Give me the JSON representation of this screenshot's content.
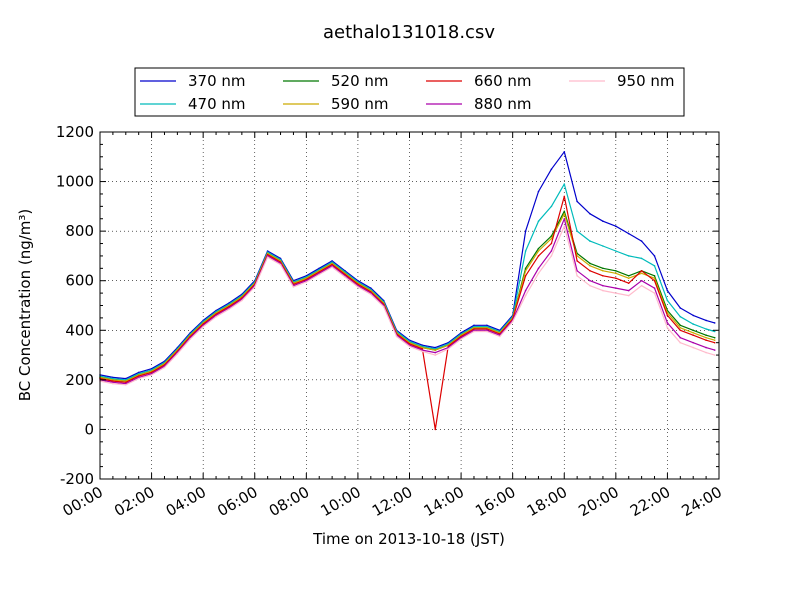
{
  "chart_data": {
    "type": "line",
    "title": "aethalo131018.csv",
    "xlabel": "Time on 2013-10-18 (JST)",
    "ylabel": "BC Concentration (ng/m³)",
    "ylim": [
      -200,
      1200
    ],
    "xlim": [
      "00:00",
      "24:00"
    ],
    "x_tick_labels": [
      "00:00",
      "02:00",
      "04:00",
      "06:00",
      "08:00",
      "10:00",
      "12:00",
      "14:00",
      "16:00",
      "18:00",
      "20:00",
      "22:00",
      "24:00"
    ],
    "y_tick_labels": [
      "-200",
      "0",
      "200",
      "400",
      "600",
      "800",
      "1000",
      "1200"
    ],
    "grid": true,
    "legend_position": "top-center",
    "x": [
      "00:00",
      "00:30",
      "01:00",
      "01:30",
      "02:00",
      "02:30",
      "03:00",
      "03:30",
      "04:00",
      "04:30",
      "05:00",
      "05:30",
      "06:00",
      "06:30",
      "07:00",
      "07:30",
      "08:00",
      "08:30",
      "09:00",
      "09:30",
      "10:00",
      "10:30",
      "11:00",
      "11:30",
      "12:00",
      "12:30",
      "13:00",
      "13:30",
      "14:00",
      "14:30",
      "15:00",
      "15:30",
      "16:00",
      "16:30",
      "17:00",
      "17:30",
      "18:00",
      "18:30",
      "19:00",
      "19:30",
      "20:00",
      "20:30",
      "21:00",
      "21:30",
      "22:00",
      "22:30",
      "23:00",
      "23:30",
      "23:50"
    ],
    "series": [
      {
        "name": "370 nm",
        "color": "#0000cc",
        "values": [
          220,
          210,
          205,
          230,
          245,
          275,
          330,
          390,
          440,
          480,
          510,
          545,
          600,
          720,
          690,
          600,
          620,
          650,
          680,
          640,
          600,
          570,
          520,
          400,
          360,
          340,
          330,
          350,
          390,
          420,
          420,
          400,
          460,
          800,
          960,
          1050,
          1120,
          920,
          870,
          840,
          820,
          790,
          760,
          700,
          560,
          490,
          460,
          440,
          430
        ]
      },
      {
        "name": "470 nm",
        "color": "#00bbbb",
        "values": [
          215,
          205,
          200,
          225,
          240,
          270,
          325,
          385,
          435,
          475,
          505,
          540,
          595,
          715,
          685,
          595,
          615,
          645,
          675,
          635,
          595,
          565,
          515,
          395,
          355,
          335,
          325,
          345,
          385,
          415,
          415,
          395,
          455,
          720,
          840,
          900,
          990,
          800,
          760,
          740,
          720,
          700,
          690,
          660,
          520,
          455,
          425,
          405,
          395
        ]
      },
      {
        "name": "520 nm",
        "color": "#007700",
        "values": [
          210,
          200,
          195,
          220,
          235,
          265,
          320,
          380,
          430,
          470,
          500,
          535,
          590,
          710,
          680,
          590,
          610,
          640,
          670,
          630,
          590,
          560,
          510,
          390,
          350,
          330,
          320,
          340,
          380,
          410,
          410,
          390,
          450,
          650,
          730,
          780,
          880,
          710,
          670,
          650,
          640,
          620,
          640,
          620,
          480,
          420,
          400,
          380,
          370
        ]
      },
      {
        "name": "590 nm",
        "color": "#ccaa00",
        "values": [
          210,
          200,
          195,
          220,
          235,
          265,
          320,
          380,
          430,
          470,
          500,
          535,
          590,
          710,
          680,
          590,
          610,
          640,
          670,
          630,
          590,
          560,
          510,
          390,
          350,
          330,
          320,
          340,
          380,
          410,
          410,
          390,
          450,
          640,
          720,
          770,
          870,
          700,
          660,
          640,
          630,
          610,
          630,
          610,
          470,
          410,
          390,
          370,
          360
        ]
      },
      {
        "name": "660 nm",
        "color": "#dd0000",
        "values": [
          205,
          195,
          190,
          215,
          230,
          260,
          315,
          375,
          425,
          465,
          495,
          530,
          585,
          705,
          675,
          585,
          605,
          635,
          665,
          625,
          585,
          555,
          505,
          385,
          345,
          325,
          0,
          335,
          375,
          405,
          405,
          385,
          445,
          620,
          700,
          750,
          940,
          680,
          640,
          620,
          610,
          590,
          640,
          600,
          460,
          400,
          380,
          360,
          350
        ]
      },
      {
        "name": "880 nm",
        "color": "#aa00aa",
        "values": [
          200,
          190,
          185,
          210,
          225,
          255,
          310,
          370,
          420,
          460,
          490,
          525,
          580,
          700,
          670,
          580,
          600,
          630,
          660,
          620,
          580,
          550,
          500,
          380,
          340,
          320,
          310,
          330,
          370,
          400,
          400,
          380,
          440,
          560,
          650,
          720,
          850,
          640,
          600,
          580,
          570,
          560,
          600,
          570,
          430,
          370,
          350,
          330,
          320
        ]
      },
      {
        "name": "950 nm",
        "color": "#ffbbcc",
        "values": [
          195,
          185,
          180,
          205,
          220,
          250,
          305,
          365,
          415,
          455,
          485,
          520,
          575,
          695,
          665,
          575,
          595,
          625,
          655,
          615,
          575,
          545,
          495,
          375,
          335,
          315,
          300,
          325,
          365,
          395,
          395,
          375,
          435,
          540,
          630,
          700,
          820,
          620,
          580,
          560,
          550,
          540,
          580,
          550,
          410,
          350,
          330,
          310,
          300
        ]
      }
    ]
  }
}
